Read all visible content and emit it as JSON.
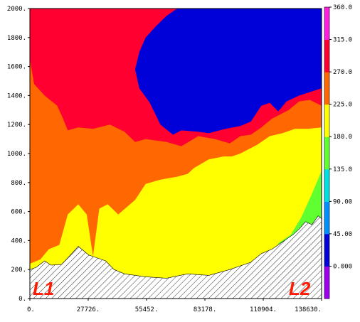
{
  "chart_data": {
    "type": "contour-section",
    "title": "",
    "xlabel": "",
    "ylabel": "",
    "xlim": [
      0,
      138630
    ],
    "ylim": [
      0,
      2000
    ],
    "x_ticks": [
      "0.",
      "27726.",
      "55452.",
      "83178.",
      "110904.",
      "138630."
    ],
    "y_ticks": [
      "0.",
      "200.",
      "400.",
      "600.",
      "800.",
      "1000.",
      "1200.",
      "1400.",
      "1600.",
      "1800.",
      "2000."
    ],
    "colorbar": {
      "labels": [
        "0.000",
        "45.00",
        "90.00",
        "135.0",
        "180.0",
        "225.0",
        "270.0",
        "315.0",
        "360.0"
      ],
      "colors": [
        "#a000f0",
        "#0000d8",
        "#0090ff",
        "#00e0e0",
        "#60ff30",
        "#ffff00",
        "#ff6800",
        "#ff0030",
        "#ff20e0"
      ]
    },
    "endpoint_labels": [
      "L1",
      "L2"
    ],
    "regions": [
      {
        "name": "orange",
        "color": "#ff6800",
        "data": [
          [
            0,
            1650
          ],
          [
            2000,
            1480
          ],
          [
            7000,
            1400
          ],
          [
            13000,
            1330
          ],
          [
            15500,
            1250
          ],
          [
            18000,
            1160
          ],
          [
            23000,
            1180
          ],
          [
            30000,
            1170
          ],
          [
            38000,
            1200
          ],
          [
            45000,
            1150
          ],
          [
            50000,
            1080
          ],
          [
            55000,
            1100
          ],
          [
            65000,
            1080
          ],
          [
            72000,
            1050
          ],
          [
            80000,
            1120
          ],
          [
            88000,
            1100
          ],
          [
            95000,
            1070
          ],
          [
            100000,
            1120
          ],
          [
            105000,
            1130
          ],
          [
            110000,
            1180
          ],
          [
            115000,
            1240
          ],
          [
            123000,
            1300
          ],
          [
            128000,
            1360
          ],
          [
            133000,
            1370
          ],
          [
            138630,
            1330
          ],
          [
            138630,
            0
          ],
          [
            0,
            0
          ]
        ]
      },
      {
        "name": "yellow",
        "color": "#ffff00",
        "data": [
          [
            0,
            0
          ],
          [
            0,
            240
          ],
          [
            5000,
            270
          ],
          [
            9000,
            340
          ],
          [
            14000,
            370
          ],
          [
            18000,
            580
          ],
          [
            23000,
            650
          ],
          [
            27000,
            580
          ],
          [
            30000,
            290
          ],
          [
            33000,
            620
          ],
          [
            37000,
            650
          ],
          [
            42000,
            580
          ],
          [
            50000,
            680
          ],
          [
            55000,
            790
          ],
          [
            62000,
            820
          ],
          [
            70000,
            840
          ],
          [
            75000,
            860
          ],
          [
            78000,
            900
          ],
          [
            85000,
            960
          ],
          [
            92000,
            980
          ],
          [
            96000,
            980
          ],
          [
            100000,
            1000
          ],
          [
            108000,
            1060
          ],
          [
            114000,
            1120
          ],
          [
            120000,
            1140
          ],
          [
            126000,
            1170
          ],
          [
            132000,
            1170
          ],
          [
            138630,
            1180
          ],
          [
            138630,
            0
          ]
        ]
      },
      {
        "name": "green",
        "color": "#60ff30",
        "data": [
          [
            118000,
            380
          ],
          [
            124000,
            440
          ],
          [
            129000,
            560
          ],
          [
            134000,
            720
          ],
          [
            138630,
            880
          ],
          [
            138630,
            0
          ],
          [
            118000,
            0
          ]
        ]
      },
      {
        "name": "blue",
        "color": "#0000d8",
        "data": [
          [
            50000,
            1580
          ],
          [
            52000,
            1700
          ],
          [
            55000,
            1800
          ],
          [
            60000,
            1880
          ],
          [
            65000,
            1950
          ],
          [
            70000,
            2000
          ],
          [
            90000,
            2000
          ],
          [
            138630,
            2000
          ],
          [
            138630,
            1450
          ],
          [
            128000,
            1400
          ],
          [
            122000,
            1360
          ],
          [
            118000,
            1290
          ],
          [
            114000,
            1350
          ],
          [
            110000,
            1330
          ],
          [
            105000,
            1220
          ],
          [
            100000,
            1190
          ],
          [
            93000,
            1170
          ],
          [
            85000,
            1140
          ],
          [
            80000,
            1150
          ],
          [
            72000,
            1160
          ],
          [
            68000,
            1130
          ],
          [
            62000,
            1200
          ],
          [
            57000,
            1350
          ],
          [
            52000,
            1450
          ]
        ]
      }
    ],
    "terrain": [
      [
        0,
        200
      ],
      [
        3000,
        215
      ],
      [
        7000,
        260
      ],
      [
        10000,
        230
      ],
      [
        15000,
        235
      ],
      [
        18000,
        280
      ],
      [
        23000,
        360
      ],
      [
        28000,
        300
      ],
      [
        32000,
        280
      ],
      [
        36000,
        260
      ],
      [
        40000,
        200
      ],
      [
        45000,
        170
      ],
      [
        55000,
        150
      ],
      [
        65000,
        140
      ],
      [
        75000,
        170
      ],
      [
        85000,
        160
      ],
      [
        90000,
        180
      ],
      [
        95000,
        200
      ],
      [
        105000,
        250
      ],
      [
        110000,
        310
      ],
      [
        115000,
        340
      ],
      [
        120000,
        390
      ],
      [
        125000,
        440
      ],
      [
        128000,
        480
      ],
      [
        131000,
        530
      ],
      [
        134000,
        510
      ],
      [
        137000,
        570
      ],
      [
        138630,
        550
      ]
    ]
  }
}
